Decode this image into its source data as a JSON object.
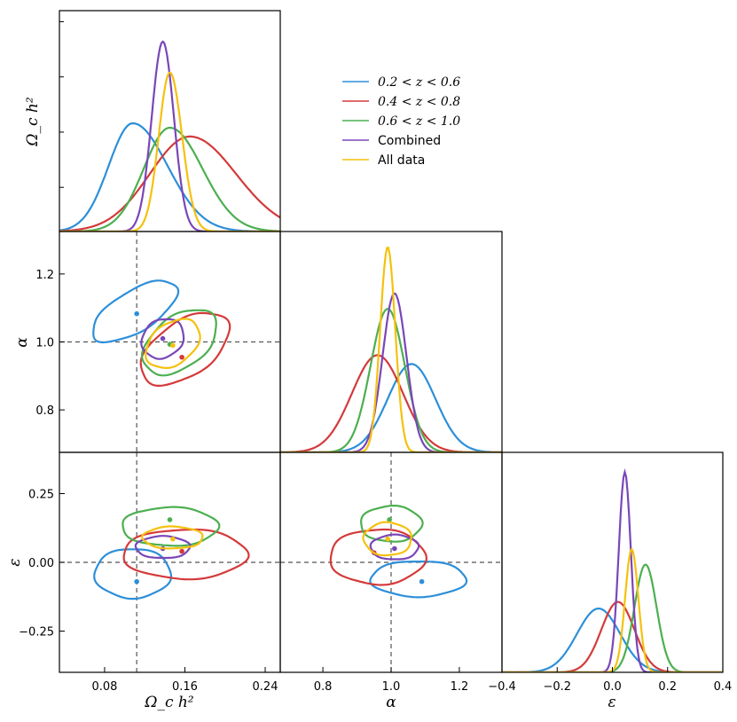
{
  "chart_data": {
    "type": "corner",
    "parameters": [
      {
        "key": "omega",
        "label": "Ω_c h²",
        "range": [
          0.035,
          0.255
        ],
        "ticks": [
          0.08,
          0.16,
          0.24
        ],
        "tick_labels": [
          "0.08",
          "0.16",
          "0.24"
        ]
      },
      {
        "key": "alpha",
        "label": "α",
        "range": [
          0.675,
          1.325
        ],
        "ticks": [
          0.8,
          1.0,
          1.2
        ],
        "tick_labels": [
          "0.8",
          "1.0",
          "1.2"
        ]
      },
      {
        "key": "epsilon",
        "label": "ε",
        "range": [
          -0.4,
          0.4
        ],
        "ticks": [
          -0.25,
          0.0,
          0.25
        ],
        "tick_labels": [
          "−0.25",
          "0.00",
          "0.25"
        ],
        "x_tick_labels": [
          "−0.4",
          "−0.2",
          "0.0",
          "0.2",
          "0.4"
        ],
        "x_ticks": [
          -0.4,
          -0.2,
          0.0,
          0.2,
          0.4
        ]
      }
    ],
    "reference": {
      "omega": 0.112,
      "alpha": 1.0,
      "epsilon": 0.0
    },
    "legend": {
      "position": "upper-right",
      "entries": [
        "0.2 < z < 0.6",
        "0.4 < z < 0.8",
        "0.6 < z < 1.0",
        "Combined",
        "All data"
      ]
    },
    "series": [
      {
        "name": "0.2 < z < 0.6",
        "color": "#2d8fd9",
        "omega": {
          "mean": 0.108,
          "sd": 0.024,
          "skew": 0.9,
          "peak": 0.49
        },
        "alpha": {
          "mean": 1.06,
          "sd": 0.07,
          "skew": 0.0,
          "peak": 0.4
        },
        "epsilon": {
          "mean": -0.05,
          "sd": 0.078,
          "skew": 0.0,
          "peak": 0.29
        },
        "points": {
          "om_al": [
            0.112,
            1.083
          ],
          "om_ep": [
            0.112,
            -0.07
          ],
          "al_ep": [
            1.09,
            -0.07
          ]
        },
        "ell": {
          "om_al": {
            "c": [
              0.11,
              1.09
            ],
            "r": [
              0.048,
              0.06
            ],
            "rot": -0.55
          },
          "om_ep": {
            "c": [
              0.108,
              -0.04
            ],
            "r": [
              0.038,
              0.09
            ],
            "rot": 0.0
          },
          "al_ep": {
            "c": [
              1.08,
              -0.06
            ],
            "r": [
              0.14,
              0.065
            ],
            "rot": 0.0
          }
        }
      },
      {
        "name": "0.4 < z < 0.8",
        "color": "#d43a3a",
        "omega": {
          "mean": 0.165,
          "sd": 0.04,
          "skew": 0.3,
          "peak": 0.43
        },
        "alpha": {
          "mean": 0.96,
          "sd": 0.075,
          "skew": 0.0,
          "peak": 0.44
        },
        "epsilon": {
          "mean": 0.02,
          "sd": 0.06,
          "skew": 0.0,
          "peak": 0.32
        },
        "points": {
          "om_al": [
            0.157,
            0.955
          ],
          "om_ep": [
            0.157,
            0.04
          ],
          "al_ep": [
            0.95,
            0.035
          ]
        },
        "ell": {
          "om_al": {
            "c": [
              0.16,
              0.98
            ],
            "r": [
              0.05,
              0.08
            ],
            "rot": -0.6
          },
          "om_ep": {
            "c": [
              0.16,
              0.03
            ],
            "r": [
              0.062,
              0.09
            ],
            "rot": 0.0
          },
          "al_ep": {
            "c": [
              0.96,
              0.02
            ],
            "r": [
              0.14,
              0.1
            ],
            "rot": 0.0
          }
        }
      },
      {
        "name": "0.6 < z < 1.0",
        "color": "#4caf50",
        "omega": {
          "mean": 0.145,
          "sd": 0.026,
          "skew": 0.5,
          "peak": 0.47
        },
        "alpha": {
          "mean": 0.99,
          "sd": 0.05,
          "skew": 0.0,
          "peak": 0.65
        },
        "epsilon": {
          "mean": 0.12,
          "sd": 0.04,
          "skew": 0.0,
          "peak": 0.49
        },
        "points": {
          "om_al": [
            0.145,
            0.993
          ],
          "om_ep": [
            0.145,
            0.155
          ],
          "al_ep": [
            0.995,
            0.155
          ]
        },
        "ell": {
          "om_al": {
            "c": [
              0.155,
              1.0
            ],
            "r": [
              0.042,
              0.075
            ],
            "rot": -0.65
          },
          "om_ep": {
            "c": [
              0.145,
              0.13
            ],
            "r": [
              0.048,
              0.07
            ],
            "rot": 0.0
          },
          "al_ep": {
            "c": [
              1.0,
              0.14
            ],
            "r": [
              0.09,
              0.065
            ],
            "rot": 0.0
          }
        }
      },
      {
        "name": "Combined",
        "color": "#7a46b8",
        "omega": {
          "mean": 0.138,
          "sd": 0.011,
          "skew": 0.0,
          "peak": 0.86
        },
        "alpha": {
          "mean": 1.01,
          "sd": 0.035,
          "skew": 0.0,
          "peak": 0.72
        },
        "epsilon": {
          "mean": 0.045,
          "sd": 0.022,
          "skew": 0.0,
          "peak": 0.91
        },
        "points": {
          "om_al": [
            0.138,
            1.01
          ],
          "om_ep": [
            0.138,
            0.05
          ],
          "al_ep": [
            1.01,
            0.05
          ]
        },
        "ell": {
          "om_al": {
            "c": [
              0.138,
              1.01
            ],
            "r": [
              0.022,
              0.055
            ],
            "rot": -0.6
          },
          "om_ep": {
            "c": [
              0.138,
              0.055
            ],
            "r": [
              0.027,
              0.04
            ],
            "rot": 0.0
          },
          "al_ep": {
            "c": [
              1.01,
              0.055
            ],
            "r": [
              0.07,
              0.045
            ],
            "rot": 0.0
          }
        }
      },
      {
        "name": "All data",
        "color": "#f5c10e",
        "omega": {
          "mean": 0.145,
          "sd": 0.011,
          "skew": 0.2,
          "peak": 0.72
        },
        "alpha": {
          "mean": 0.99,
          "sd": 0.022,
          "skew": 0.0,
          "peak": 0.93
        },
        "epsilon": {
          "mean": 0.07,
          "sd": 0.024,
          "skew": 0.0,
          "peak": 0.56
        },
        "points": {
          "om_al": [
            0.148,
            0.99
          ],
          "om_ep": [
            0.148,
            0.085
          ],
          "al_ep": [
            0.99,
            0.085
          ]
        },
        "ell": {
          "om_al": {
            "c": [
              0.148,
              0.995
            ],
            "r": [
              0.03,
              0.06
            ],
            "rot": -0.65
          },
          "om_ep": {
            "c": [
              0.148,
              0.09
            ],
            "r": [
              0.03,
              0.04
            ],
            "rot": 0.0
          },
          "al_ep": {
            "c": [
              0.99,
              0.085
            ],
            "r": [
              0.07,
              0.06
            ],
            "rot": 0.0
          }
        }
      }
    ]
  }
}
